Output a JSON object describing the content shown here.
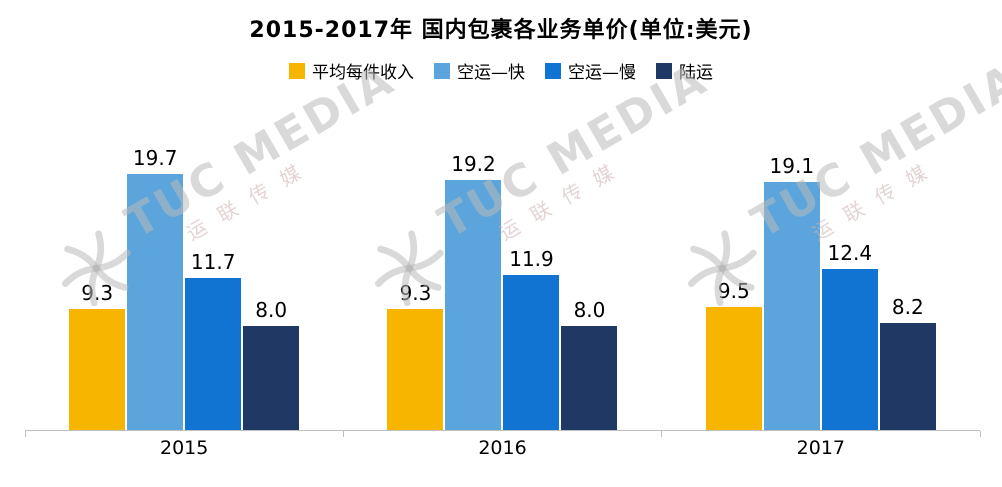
{
  "title": "2015-2017年 国内包裹各业务单价(单位:美元)",
  "watermark": {
    "text": "TUC MEDIA",
    "sub": "运联传媒"
  },
  "chart_data": {
    "type": "bar",
    "title": "2015-2017年 国内包裹各业务单价(单位:美元)",
    "categories": [
      "2015",
      "2016",
      "2017"
    ],
    "series": [
      {
        "name": "平均每件收入",
        "color": "#F7B500",
        "values": [
          9.3,
          9.3,
          9.5
        ]
      },
      {
        "name": "空运—快",
        "color": "#5BA5DC",
        "values": [
          19.7,
          19.2,
          19.1
        ]
      },
      {
        "name": "空运—慢",
        "color": "#1274D2",
        "values": [
          11.7,
          11.9,
          12.4
        ]
      },
      {
        "name": "陆运",
        "color": "#1F3864",
        "values": [
          8.0,
          8.0,
          8.2
        ]
      }
    ],
    "xlabel": "",
    "ylabel": "",
    "ylim": [
      0,
      21
    ],
    "grid": false,
    "legend_position": "top",
    "value_labels": true,
    "value_label_format": "one-decimal"
  }
}
